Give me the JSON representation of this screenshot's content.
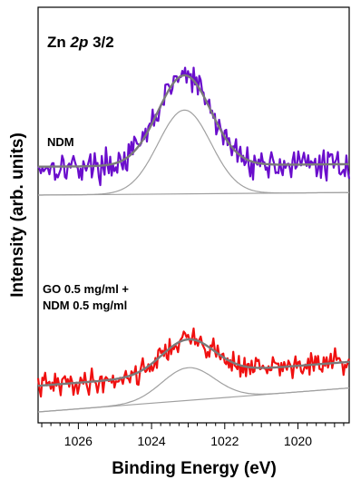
{
  "chart_data": {
    "type": "line",
    "title": "Zn 2p 3/2",
    "title_parts": {
      "prefix": "Zn ",
      "italic": "2p",
      "suffix": " 3/2"
    },
    "xlabel": "Binding Energy (eV)",
    "ylabel": "Intensity (arb. units)",
    "xlim": [
      1027.1,
      1018.6
    ],
    "x_reversed": true,
    "xticks": [
      1026,
      1024,
      1022,
      1020
    ],
    "yticks_shown": false,
    "grid": false,
    "legend": "none",
    "panels": [
      {
        "label_lines": [
          "NDM"
        ],
        "color": "#6a0dcc",
        "fit_color": "#7a7a7a",
        "component_color": "#a0a0a0",
        "baseline_start": 0.0,
        "baseline_end": 0.2,
        "peak_center": 1023.1,
        "peak_sigma": 0.72,
        "peak_height": 6.5,
        "fit_peak_height": 7.0,
        "fit_offset": 2.2,
        "noise": 0.55,
        "seed": 17
      },
      {
        "label_lines": [
          "GO 0.5 mg/ml +",
          "NDM 0.5 mg/ml"
        ],
        "color": "#f01010",
        "fit_color": "#7a7a7a",
        "component_color": "#a0a0a0",
        "baseline_start": 0.0,
        "baseline_end": 2.2,
        "peak_center": 1023.0,
        "peak_sigma": 0.72,
        "peak_height": 3.0,
        "fit_peak_height": 3.2,
        "fit_offset": 2.4,
        "noise": 0.55,
        "seed": 41
      }
    ]
  }
}
